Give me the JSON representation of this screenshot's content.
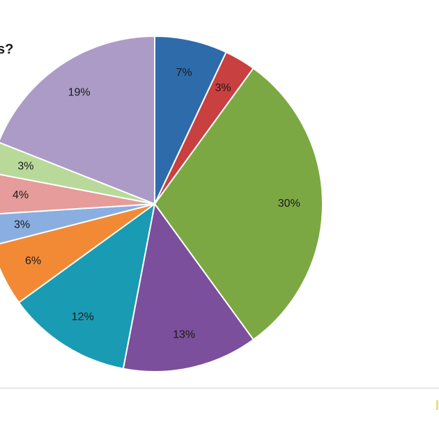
{
  "chart_data": {
    "type": "pie",
    "title": "s?",
    "start_angle_deg": 0,
    "direction": "clockwise",
    "slices": [
      {
        "label": "7%",
        "value": 7,
        "color": "#2e6bab"
      },
      {
        "label": "3%",
        "value": 3,
        "color": "#c8403f"
      },
      {
        "label": "30%",
        "value": 30,
        "color": "#7ca843"
      },
      {
        "label": "13%",
        "value": 13,
        "color": "#7b4f9c"
      },
      {
        "label": "12%",
        "value": 12,
        "color": "#1a9bb4"
      },
      {
        "label": "6%",
        "value": 6,
        "color": "#f28a35"
      },
      {
        "label": "3%",
        "value": 3,
        "color": "#8aaee0"
      },
      {
        "label": "4%",
        "value": 4,
        "color": "#e59c9b"
      },
      {
        "label": "3%",
        "value": 3,
        "color": "#b9d99a"
      },
      {
        "label": "19%",
        "value": 19,
        "color": "#ab9bc6"
      }
    ],
    "slice_border_color": "#ffffff",
    "legend": "none"
  }
}
